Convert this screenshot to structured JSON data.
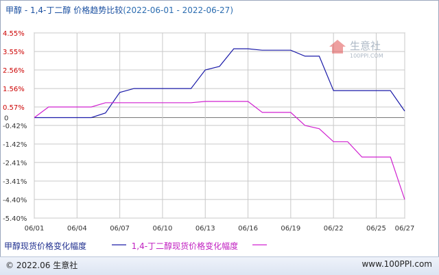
{
  "header": {
    "title_prefix": "甲醇 - 1,4-丁二醇 价格趋势比较",
    "title_range": "(2022-06-01 - 2022-06-27)"
  },
  "watermark": {
    "text": "生意社",
    "sub": "100PPI.COM"
  },
  "legend": {
    "series1_label": "甲醇现货价格变化幅度",
    "series2_label": "1,4-丁二醇现货价格变化幅度"
  },
  "footer": {
    "left": "© 2022.06 生意社",
    "right": "www.100PPI.com"
  },
  "colors": {
    "series1": "#1a1aa8",
    "series2": "#d020d0",
    "axis_pos": "#cc0000",
    "axis_neg": "#333333",
    "grid": "#c8c8c8"
  },
  "chart_data": {
    "type": "line",
    "title": "甲醇 - 1,4-丁二醇 价格趋势比较(2022-06-01 - 2022-06-27)",
    "x_ticks": [
      "06/01",
      "06/04",
      "06/07",
      "06/10",
      "06/13",
      "06/16",
      "06/19",
      "06/22",
      "06/25",
      "06/27"
    ],
    "y_ticks": [
      "4.55%",
      "3.55%",
      "2.56%",
      "1.56%",
      "0.57%",
      "0",
      "-0.42%",
      "-1.42%",
      "-2.41%",
      "-3.41%",
      "-4.40%",
      "-5.40%"
    ],
    "ylim": [
      -5.4,
      4.55
    ],
    "xlim": [
      1,
      27
    ],
    "grid": true,
    "series": [
      {
        "name": "甲醇现货价格变化幅度",
        "x": [
          1,
          2,
          3,
          4,
          5,
          6,
          7,
          8,
          9,
          10,
          11,
          12,
          13,
          14,
          15,
          16,
          17,
          18,
          19,
          20,
          21,
          22,
          23,
          24,
          25,
          26,
          27
        ],
        "values": [
          0,
          0,
          0,
          0,
          0,
          0.25,
          1.35,
          1.56,
          1.56,
          1.56,
          1.56,
          1.56,
          2.56,
          2.75,
          3.7,
          3.7,
          3.62,
          3.62,
          3.62,
          3.3,
          3.3,
          1.45,
          1.45,
          1.45,
          1.45,
          1.45,
          0.35
        ]
      },
      {
        "name": "1,4-丁二醇现货价格变化幅度",
        "x": [
          1,
          2,
          3,
          4,
          5,
          6,
          7,
          8,
          9,
          10,
          11,
          12,
          13,
          14,
          15,
          16,
          17,
          18,
          19,
          20,
          21,
          22,
          23,
          24,
          25,
          26,
          27
        ],
        "values": [
          0,
          0.57,
          0.57,
          0.57,
          0.57,
          0.8,
          0.8,
          0.8,
          0.8,
          0.8,
          0.8,
          0.8,
          0.87,
          0.87,
          0.87,
          0.87,
          0.28,
          0.28,
          0.28,
          -0.42,
          -0.6,
          -1.3,
          -1.3,
          -2.12,
          -2.12,
          -2.12,
          -4.4
        ]
      }
    ]
  }
}
